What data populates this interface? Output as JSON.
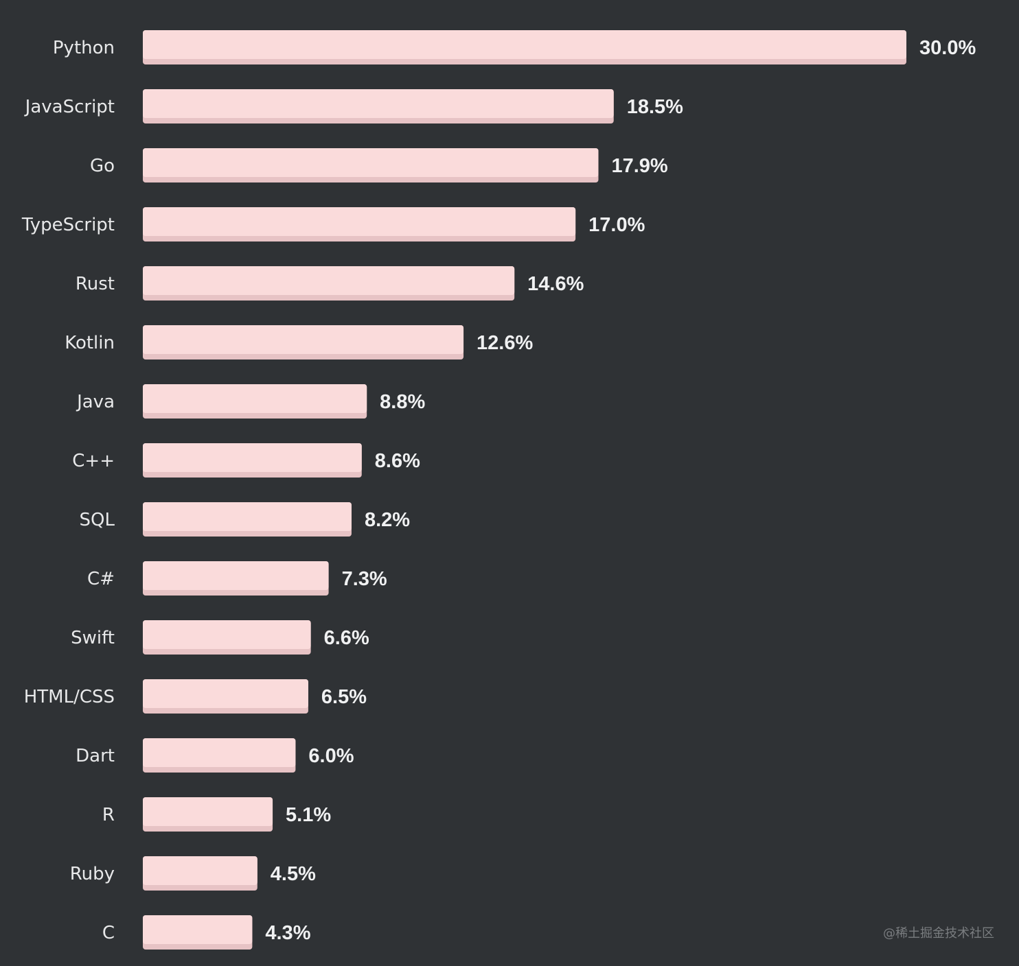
{
  "chart_data": {
    "type": "bar",
    "orientation": "horizontal",
    "categories": [
      "Python",
      "JavaScript",
      "Go",
      "TypeScript",
      "Rust",
      "Kotlin",
      "Java",
      "C++",
      "SQL",
      "C#",
      "Swift",
      "HTML/CSS",
      "Dart",
      "R",
      "Ruby",
      "C"
    ],
    "values": [
      30.0,
      18.5,
      17.9,
      17.0,
      14.6,
      12.6,
      8.8,
      8.6,
      8.2,
      7.3,
      6.6,
      6.5,
      6.0,
      5.1,
      4.5,
      4.3
    ],
    "value_labels": [
      "30.0%",
      "18.5%",
      "17.9%",
      "17.0%",
      "14.6%",
      "12.6%",
      "8.8%",
      "8.6%",
      "8.2%",
      "7.3%",
      "6.6%",
      "6.5%",
      "6.0%",
      "5.1%",
      "4.5%",
      "4.3%"
    ],
    "title": "",
    "xlabel": "",
    "ylabel": "",
    "xlim": [
      0,
      30
    ],
    "grid": false,
    "legend": "none",
    "colors": {
      "background": "#2f3235",
      "bar": "#fadbdb",
      "bar_edge": "#e7c3c5",
      "category_text": "#e8e9ea",
      "value_text": "#f0f1f2"
    }
  },
  "watermark": "@稀土掘金技术社区"
}
